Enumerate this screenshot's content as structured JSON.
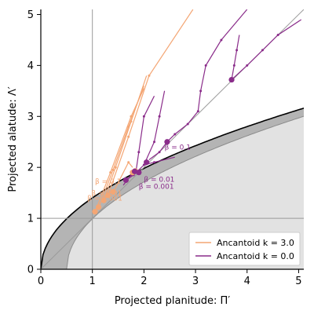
{
  "chart_data": {
    "type": "line",
    "xlabel": "Projected planitude: Π′",
    "ylabel": "Projected alatude: Λ′",
    "xlim": [
      0,
      5.1
    ],
    "ylim": [
      0,
      5.1
    ],
    "xticks": [
      "0",
      "1",
      "2",
      "3",
      "4",
      "5"
    ],
    "yticks": [
      "0",
      "1",
      "2",
      "3",
      "4",
      "5"
    ],
    "grid": false,
    "legend_position": "bottom-right",
    "reference_lines": [
      {
        "kind": "vertical",
        "x": 1,
        "color": "#9a9a9a"
      },
      {
        "kind": "horizontal",
        "y": 1,
        "color": "#9a9a9a"
      },
      {
        "kind": "diagonal",
        "from": [
          0,
          0
        ],
        "to": [
          5.1,
          5.1
        ],
        "color": "#9a9a9a"
      }
    ],
    "regions": [
      {
        "name": "outer-band",
        "boundary": "y = 1.4*sqrt(x)",
        "color": "#b4b4b4"
      },
      {
        "name": "inner-region",
        "boundary": "y = 1.4*sqrt(x - 0.5)",
        "color": "#e2e2e2"
      }
    ],
    "series": [
      {
        "name": "Ancantoid k = 3.0",
        "color": "#f4a674",
        "curves": [
          {
            "label": "β = 0.1",
            "points": [
              [
                1.22,
                1.35
              ],
              [
                1.45,
                2.0
              ],
              [
                1.75,
                2.9
              ],
              [
                2.05,
                3.8
              ]
            ]
          },
          {
            "label": "β = 0.01",
            "points": [
              [
                1.12,
                1.2
              ],
              [
                1.4,
                1.95
              ],
              [
                1.7,
                2.8
              ],
              [
                2.0,
                3.6
              ]
            ]
          },
          {
            "label": "β = 0.001",
            "points": [
              [
                1.05,
                1.12
              ],
              [
                1.35,
                1.9
              ],
              [
                1.75,
                3.0
              ],
              [
                2.0,
                3.55
              ]
            ]
          },
          {
            "points": [
              [
                1.3,
                1.45
              ],
              [
                1.7,
                2.6
              ],
              [
                2.1,
                3.8
              ],
              [
                2.95,
                5.1
              ]
            ]
          },
          {
            "points": [
              [
                1.4,
                1.5
              ],
              [
                1.7,
                2.1
              ],
              [
                1.78,
                2.0
              ]
            ]
          }
        ],
        "markers": [
          [
            1.05,
            1.13
          ],
          [
            1.12,
            1.22
          ],
          [
            1.22,
            1.35
          ],
          [
            1.3,
            1.45
          ],
          [
            1.4,
            1.52
          ],
          [
            1.78,
            1.9
          ],
          [
            1.83,
            1.93
          ]
        ]
      },
      {
        "name": "Ancantoid k = 0.0",
        "color": "#8a2c8a",
        "curves": [
          {
            "label": "β = 0.1",
            "points": [
              [
                2.45,
                2.5
              ],
              [
                2.6,
                2.65
              ],
              [
                2.85,
                2.85
              ],
              [
                3.05,
                3.1
              ],
              [
                3.1,
                3.5
              ],
              [
                3.2,
                4.0
              ],
              [
                3.5,
                4.5
              ],
              [
                4.0,
                5.1
              ]
            ]
          },
          {
            "label": "β = 0.01",
            "points": [
              [
                1.65,
                1.75
              ],
              [
                1.8,
                1.85
              ],
              [
                2.0,
                2.05
              ],
              [
                2.2,
                2.1
              ],
              [
                2.6,
                2.2
              ]
            ]
          },
          {
            "label": "β = 0.001",
            "points": [
              [
                1.6,
                1.65
              ],
              [
                1.75,
                1.85
              ],
              [
                1.82,
                1.95
              ]
            ]
          },
          {
            "points": [
              [
                3.7,
                3.72
              ],
              [
                4.0,
                4.0
              ],
              [
                4.3,
                4.3
              ],
              [
                4.6,
                4.6
              ],
              [
                5.05,
                4.9
              ]
            ]
          },
          {
            "points": [
              [
                2.45,
                2.5
              ],
              [
                2.3,
                2.3
              ],
              [
                2.1,
                2.15
              ]
            ]
          },
          {
            "points": [
              [
                2.0,
                2.05
              ],
              [
                2.2,
                2.5
              ],
              [
                2.3,
                3.0
              ],
              [
                2.4,
                3.5
              ]
            ]
          },
          {
            "points": [
              [
                1.85,
                1.95
              ],
              [
                1.9,
                2.3
              ],
              [
                2.0,
                3.0
              ],
              [
                2.2,
                3.4
              ]
            ]
          },
          {
            "points": [
              [
                3.7,
                3.72
              ],
              [
                3.75,
                4.0
              ],
              [
                3.8,
                4.3
              ],
              [
                3.85,
                4.6
              ]
            ]
          }
        ],
        "markers": [
          [
            2.45,
            2.5
          ],
          [
            3.7,
            3.72
          ],
          [
            1.65,
            1.75
          ],
          [
            1.82,
            1.92
          ],
          [
            1.9,
            1.9
          ],
          [
            2.05,
            2.1
          ]
        ]
      }
    ],
    "annotations": [
      {
        "text": "β = 0.1",
        "x": 1.05,
        "y": 1.68,
        "series": "Ancantoid k = 3.0"
      },
      {
        "text": "β = 0.01",
        "x": 0.98,
        "y": 1.45,
        "series": "Ancantoid k = 3.0"
      },
      {
        "text": "β = 0.001",
        "x": 0.9,
        "y": 1.35,
        "series": "Ancantoid k = 3.0"
      },
      {
        "text": "β = 0.1",
        "x": 2.4,
        "y": 2.35,
        "series": "Ancantoid k = 0.0"
      },
      {
        "text": "β = 0.01",
        "x": 2.0,
        "y": 1.72,
        "series": "Ancantoid k = 0.0"
      },
      {
        "text": "β = 0.001",
        "x": 1.9,
        "y": 1.58,
        "series": "Ancantoid k = 0.0"
      }
    ]
  }
}
